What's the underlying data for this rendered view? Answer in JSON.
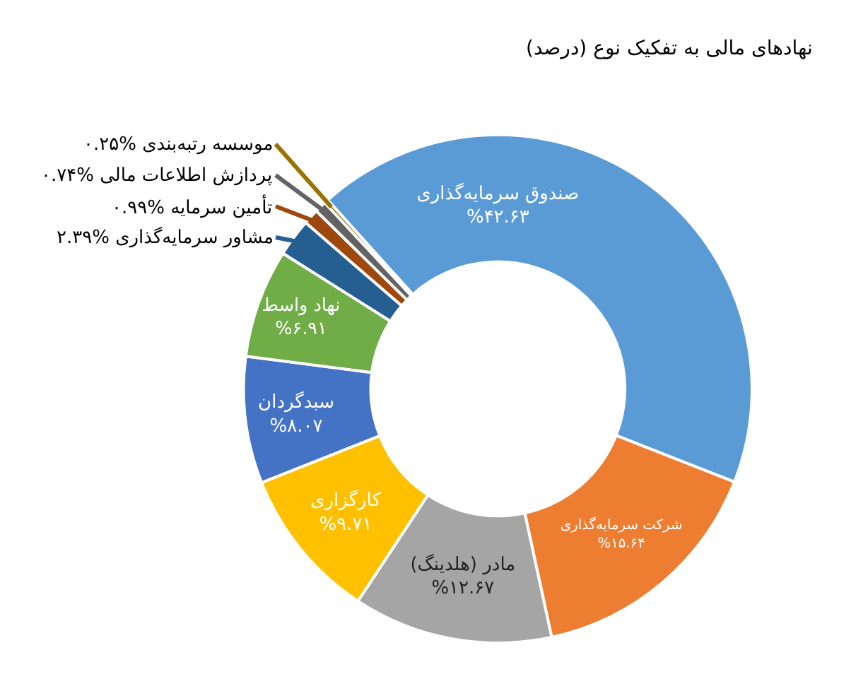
{
  "chart_data": {
    "type": "donut",
    "title": "نهادهای مالی به تفکیک نوع (درصد)",
    "categories": [
      "صندوق سرمایه‌گذاری",
      "شرکت سرمایه‌گذاری",
      "مادر (هلدینگ)",
      "کارگزاری",
      "سبدگردان",
      "نهاد واسط",
      "مشاور سرمایه‌گذاری",
      "تأمین سرمایه",
      "پردازش اطلاعات مالی",
      "موسسه رتبه‌بندی"
    ],
    "values": [
      42.63,
      15.64,
      12.67,
      9.71,
      8.07,
      6.91,
      2.39,
      0.99,
      0.74,
      0.25
    ],
    "value_labels": [
      "%۴۲.۶۳",
      "%۱۵.۶۴",
      "%۱۲.۶۷",
      "%۹.۷۱",
      "%۸.۰۷",
      "%۶.۹۱",
      "%۲.۳۹",
      "%۰.۹۹",
      "%۰.۷۴",
      "%۰.۲۵"
    ],
    "colors": [
      "#5b9bd5",
      "#ed7d31",
      "#a5a5a5",
      "#ffc000",
      "#4472c4",
      "#70ad47",
      "#255e91",
      "#9e480e",
      "#636363",
      "#997300"
    ],
    "legend": false
  }
}
